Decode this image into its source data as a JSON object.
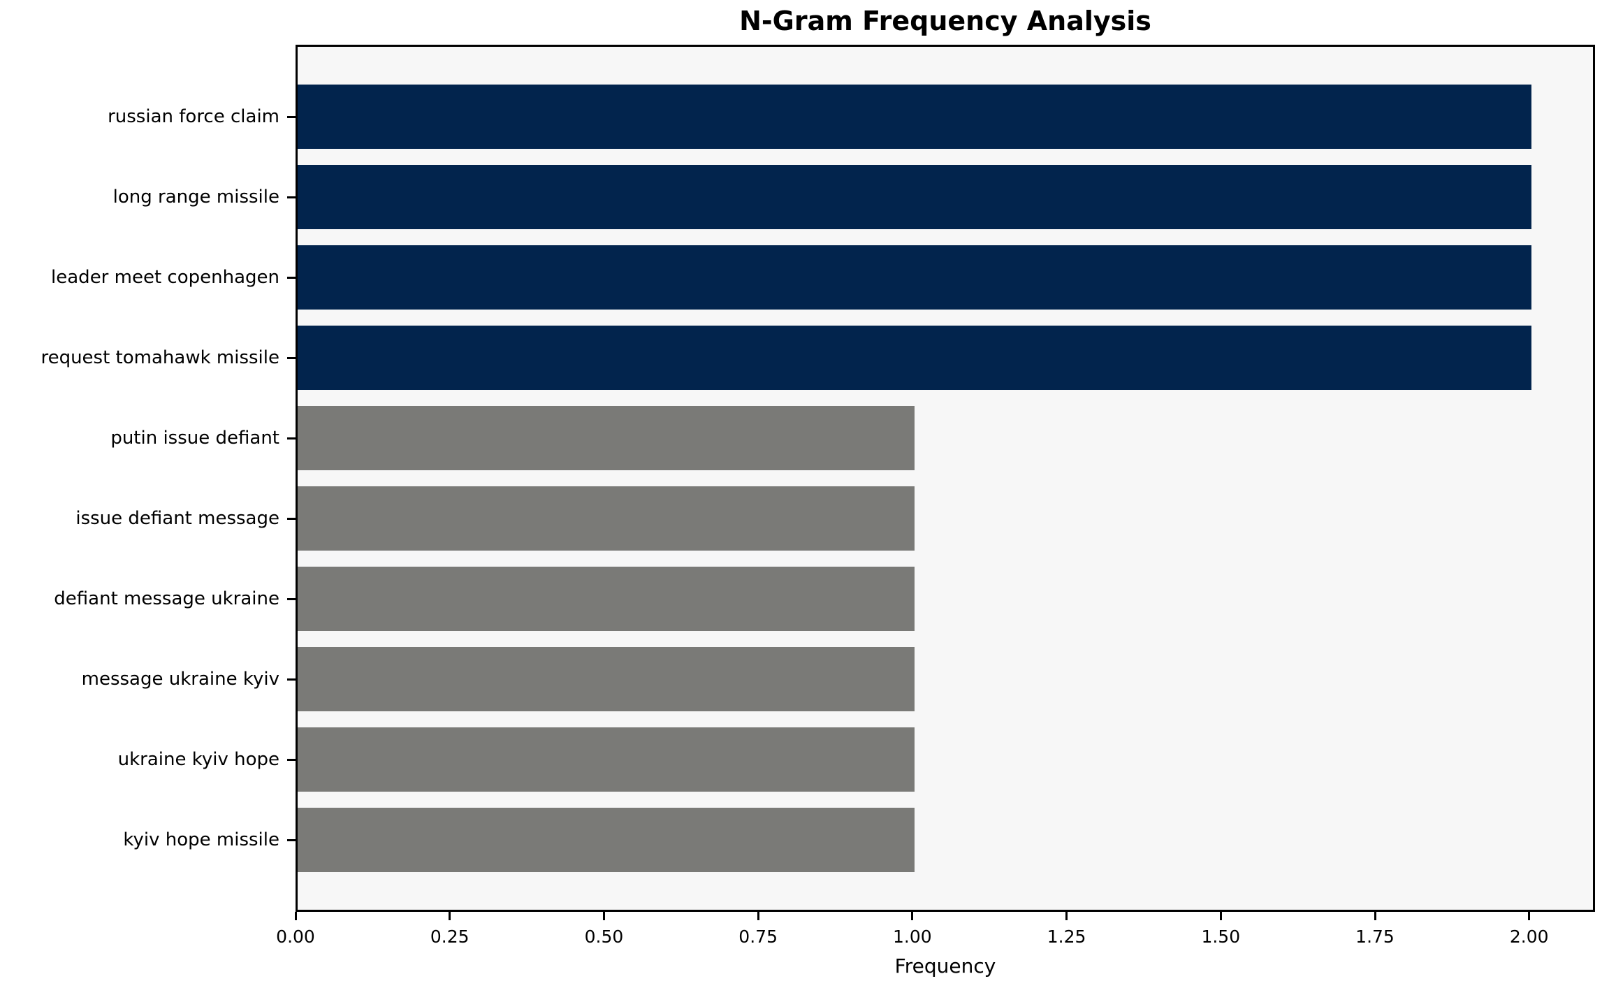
{
  "chart_data": {
    "type": "bar",
    "orientation": "horizontal",
    "title": "N-Gram Frequency Analysis",
    "xlabel": "Frequency",
    "ylabel": "",
    "categories": [
      "russian force claim",
      "long range missile",
      "leader meet copenhagen",
      "request tomahawk missile",
      "putin issue defiant",
      "issue defiant message",
      "defiant message ukraine",
      "message ukraine kyiv",
      "ukraine kyiv hope",
      "kyiv hope missile"
    ],
    "values": [
      2,
      2,
      2,
      2,
      1,
      1,
      1,
      1,
      1,
      1
    ],
    "bar_colors": [
      "#02244d",
      "#02244d",
      "#02244d",
      "#02244d",
      "#7a7a77",
      "#7a7a77",
      "#7a7a77",
      "#7a7a77",
      "#7a7a77",
      "#7a7a77"
    ],
    "xlim": [
      0,
      2.1
    ],
    "xticks": [
      {
        "value": 0.0,
        "label": "0.00"
      },
      {
        "value": 0.25,
        "label": "0.25"
      },
      {
        "value": 0.5,
        "label": "0.50"
      },
      {
        "value": 0.75,
        "label": "0.75"
      },
      {
        "value": 1.0,
        "label": "1.00"
      },
      {
        "value": 1.25,
        "label": "1.25"
      },
      {
        "value": 1.5,
        "label": "1.50"
      },
      {
        "value": 1.75,
        "label": "1.75"
      },
      {
        "value": 2.0,
        "label": "2.00"
      }
    ],
    "grid": false,
    "legend": null,
    "plot_background": "#f7f7f7",
    "figure_background": "#ffffff",
    "spine_color": "#000000"
  }
}
